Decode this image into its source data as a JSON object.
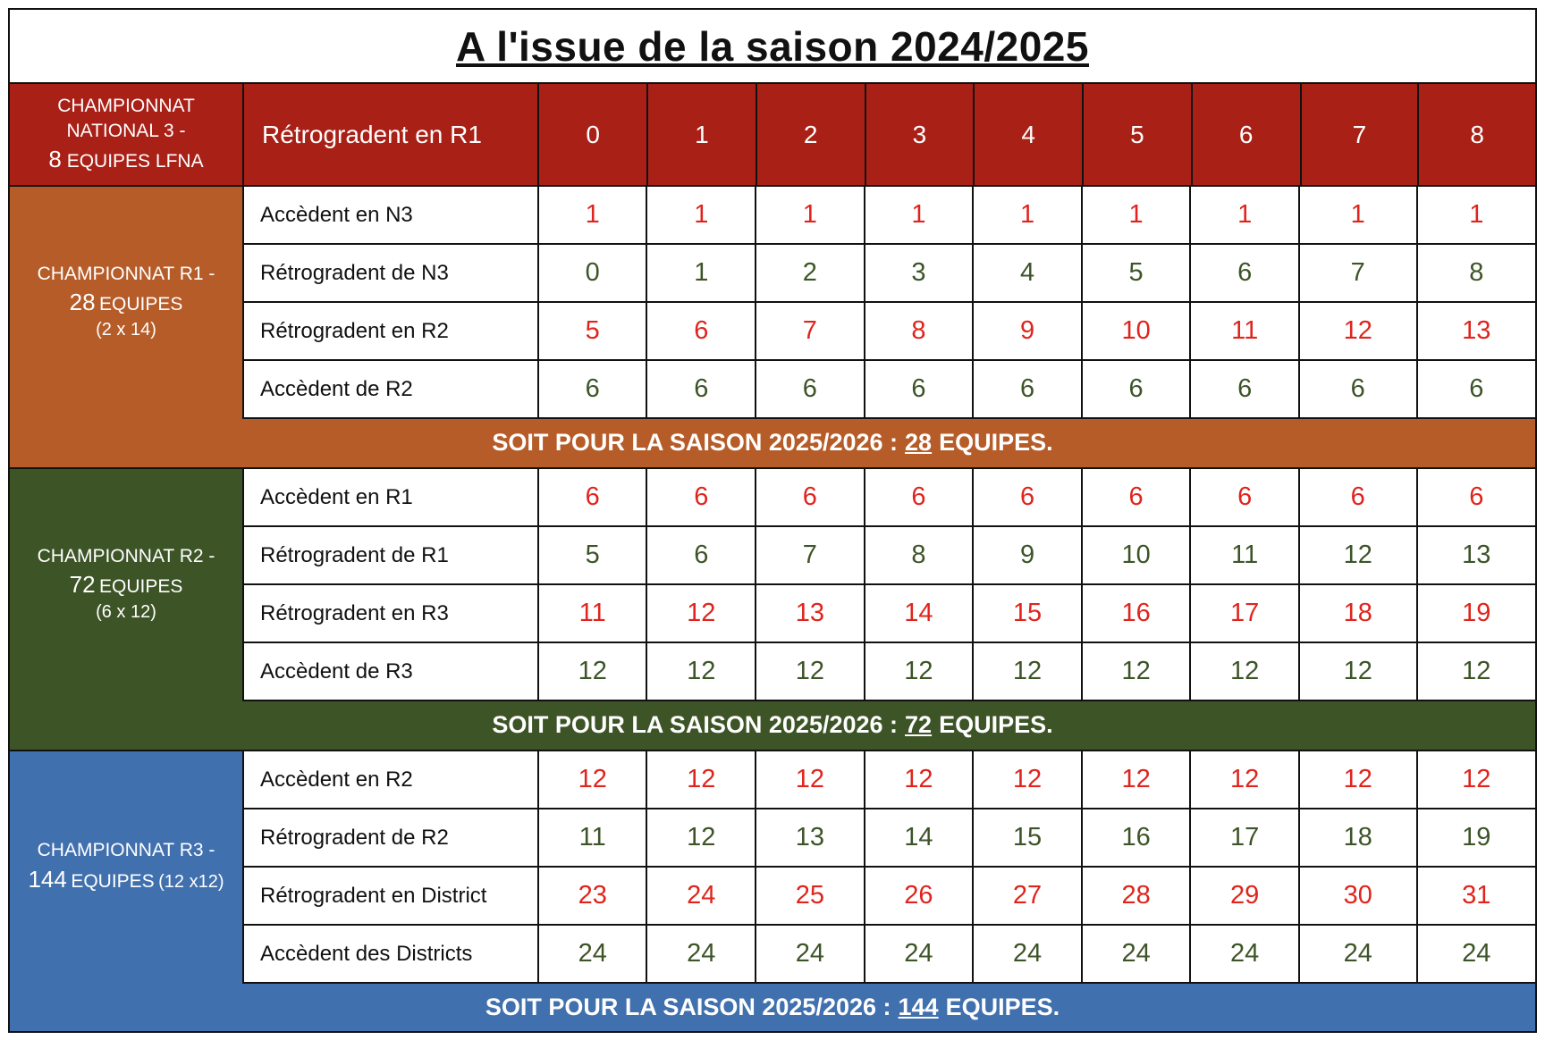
{
  "title": "A l'issue de la saison 2024/2025",
  "colors": {
    "national": "#a92017",
    "r1": "#b65c29",
    "r2": "#3d5427",
    "r3": "#4170ae",
    "accede": "#e0241d",
    "retro": "#3d5427"
  },
  "header": {
    "label_line1": "CHAMPIONNAT",
    "label_line2": "NATIONAL 3 -",
    "label_line3_num": "8",
    "label_line3_rest": "EQUIPES LFNA",
    "row_label": "Rétrogradent en R1",
    "columns": [
      "0",
      "1",
      "2",
      "3",
      "4",
      "5",
      "6",
      "7",
      "8"
    ]
  },
  "sections": [
    {
      "label_line1": "CHAMPIONNAT R1 -",
      "label_num": "28",
      "label_rest": "EQUIPES",
      "label_detail": "(2 x 14)",
      "rows": [
        {
          "label": "Accèdent en N3",
          "tone": "red",
          "values": [
            "1",
            "1",
            "1",
            "1",
            "1",
            "1",
            "1",
            "1",
            "1"
          ]
        },
        {
          "label": "Rétrogradent de N3",
          "tone": "green",
          "values": [
            "0",
            "1",
            "2",
            "3",
            "4",
            "5",
            "6",
            "7",
            "8"
          ]
        },
        {
          "label": "Rétrogradent en R2",
          "tone": "red",
          "values": [
            "5",
            "6",
            "7",
            "8",
            "9",
            "10",
            "11",
            "12",
            "13"
          ]
        },
        {
          "label": "Accèdent de R2",
          "tone": "green",
          "values": [
            "6",
            "6",
            "6",
            "6",
            "6",
            "6",
            "6",
            "6",
            "6"
          ]
        }
      ],
      "summary_prefix": "SOIT POUR LA SAISON 2025/2026 :",
      "summary_count": "28",
      "summary_suffix": "EQUIPES."
    },
    {
      "label_line1": "CHAMPIONNAT R2 -",
      "label_num": "72",
      "label_rest": "EQUIPES",
      "label_detail": "(6 x 12)",
      "rows": [
        {
          "label": "Accèdent en R1",
          "tone": "red",
          "values": [
            "6",
            "6",
            "6",
            "6",
            "6",
            "6",
            "6",
            "6",
            "6"
          ]
        },
        {
          "label": "Rétrogradent de R1",
          "tone": "green",
          "values": [
            "5",
            "6",
            "7",
            "8",
            "9",
            "10",
            "11",
            "12",
            "13"
          ]
        },
        {
          "label": "Rétrogradent en R3",
          "tone": "red",
          "values": [
            "11",
            "12",
            "13",
            "14",
            "15",
            "16",
            "17",
            "18",
            "19"
          ]
        },
        {
          "label": "Accèdent de R3",
          "tone": "green",
          "values": [
            "12",
            "12",
            "12",
            "12",
            "12",
            "12",
            "12",
            "12",
            "12"
          ]
        }
      ],
      "summary_prefix": "SOIT POUR LA SAISON 2025/2026 :",
      "summary_count": "72",
      "summary_suffix": "EQUIPES."
    },
    {
      "label_line1": "CHAMPIONNAT R3 -",
      "label_num": "144",
      "label_rest": "EQUIPES",
      "label_detail": "(12 x12)",
      "rows": [
        {
          "label": "Accèdent en R2",
          "tone": "red",
          "values": [
            "12",
            "12",
            "12",
            "12",
            "12",
            "12",
            "12",
            "12",
            "12"
          ]
        },
        {
          "label": "Rétrogradent de R2",
          "tone": "green",
          "values": [
            "11",
            "12",
            "13",
            "14",
            "15",
            "16",
            "17",
            "18",
            "19"
          ]
        },
        {
          "label": "Rétrogradent en District",
          "tone": "red",
          "values": [
            "23",
            "24",
            "25",
            "26",
            "27",
            "28",
            "29",
            "30",
            "31"
          ]
        },
        {
          "label": "Accèdent des Districts",
          "tone": "green",
          "values": [
            "24",
            "24",
            "24",
            "24",
            "24",
            "24",
            "24",
            "24",
            "24"
          ]
        }
      ],
      "summary_prefix": "SOIT POUR LA SAISON 2025/2026 :",
      "summary_count": "144",
      "summary_suffix": "EQUIPES."
    }
  ]
}
